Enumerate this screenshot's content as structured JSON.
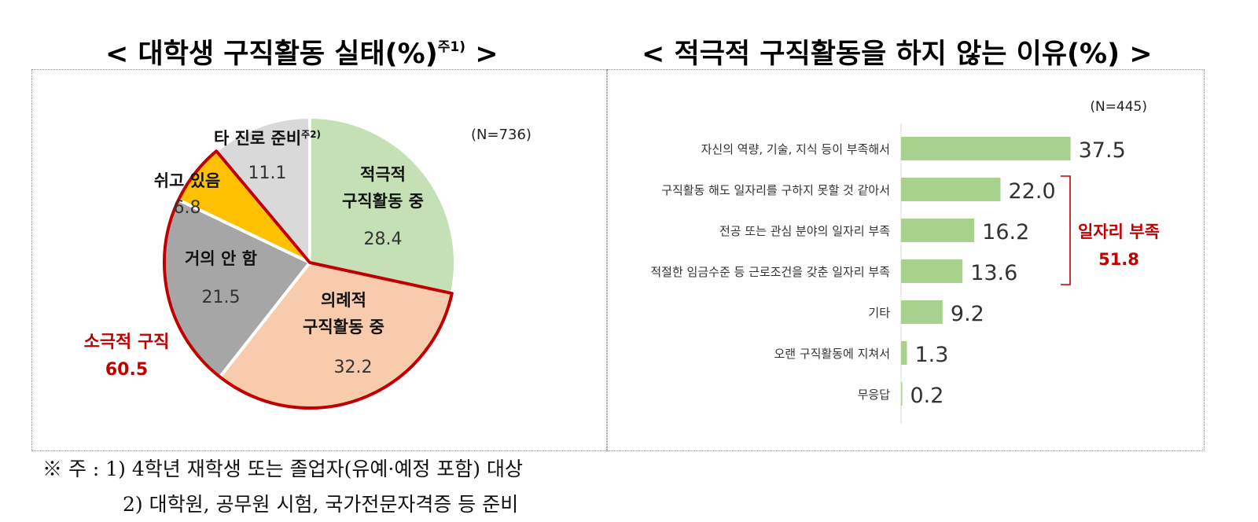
{
  "titles": {
    "left": "< 대학생 구직활동 실태(%)",
    "left_sup": "주1)",
    "left_tail": ">",
    "right": "< 적극적 구직활동을 하지 않는 이유(%) >"
  },
  "chart_data": [
    {
      "type": "pie",
      "title": "< 대학생 구직활동 실태(%)주1) >",
      "n_label": "(N=736)",
      "slices": [
        {
          "name_lines": [
            "적극적",
            "구직활동 중"
          ],
          "value": 28.4,
          "value_label": "28.4",
          "color": "#c5e0b4"
        },
        {
          "name_lines": [
            "의례적",
            "구직활동 중"
          ],
          "value": 32.2,
          "value_label": "32.2",
          "color": "#f8cbad"
        },
        {
          "name_lines": [
            "거의 안 함"
          ],
          "value": 21.5,
          "value_label": "21.5",
          "color": "#a6a6a6"
        },
        {
          "name_lines": [
            "쉬고 있음"
          ],
          "value": 6.8,
          "value_label": "6.8",
          "color": "#ffc000"
        },
        {
          "name_lines": [
            "타 진로 준비"
          ],
          "name_sup": "주2)",
          "value": 11.1,
          "value_label": "11.1",
          "color": "#d9d9d9"
        }
      ],
      "group_annotation": {
        "label": "소극적 구직",
        "value": "60.5",
        "color": "#c00000"
      }
    },
    {
      "type": "bar",
      "orientation": "horizontal",
      "title": "< 적극적 구직활동을 하지 않는 이유(%) >",
      "n_label": "(N=445)",
      "categories": [
        "자신의 역량, 기술, 지식 등이 부족해서",
        "구직활동 해도 일자리를 구하지 못할 것 같아서",
        "전공 또는 관심 분야의 일자리 부족",
        "적절한 임금수준 등 근로조건을 갖춘 일자리 부족",
        "기타",
        "오랜 구직활동에 지쳐서",
        "무응답"
      ],
      "values": [
        37.5,
        22.0,
        16.2,
        13.6,
        9.2,
        1.3,
        0.2
      ],
      "value_labels": [
        "37.5",
        "22.0",
        "16.2",
        "13.6",
        "9.2",
        "1.3",
        "0.2"
      ],
      "bar_color": "#a9d18e",
      "bracket_annotation": {
        "label": "일자리 부족",
        "value": "51.8",
        "color": "#c00000"
      }
    }
  ],
  "notes": {
    "line1": "※ 주 : 1) 4학년 재학생 또는 졸업자(유예·예정 포함) 대상",
    "line2": "2) 대학원, 공무원 시험, 국가전문자격증 등 준비"
  }
}
